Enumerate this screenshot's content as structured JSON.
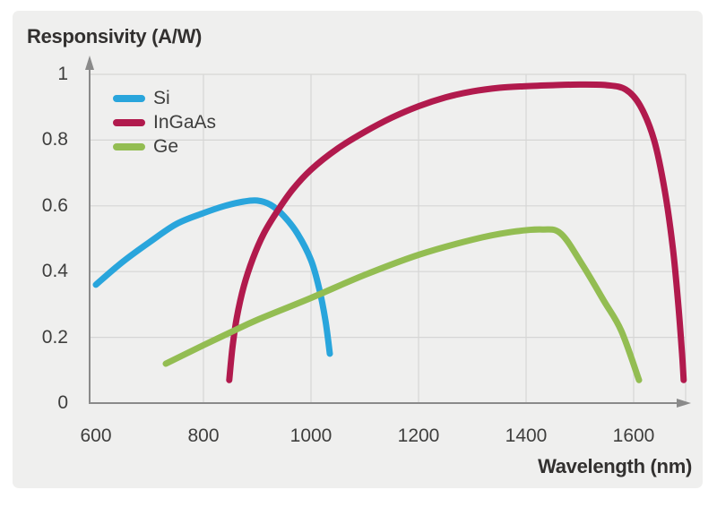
{
  "colors": {
    "page_background": "#ffffff",
    "card_background": "#efefee",
    "grid": "#d6d6d5",
    "axis": "#8a8a8a",
    "title_text": "#32302f",
    "tick_text": "#3e3e3d",
    "si_blue": "#29a5dc",
    "ingaas_crimson": "#b11a4d",
    "ge_green": "#93bd52"
  },
  "chart_data": {
    "type": "line",
    "title": "Responsivity (A/W)",
    "xlabel": "Wavelength (nm)",
    "ylabel": "Responsivity (A/W)",
    "xlim": [
      588,
      1697
    ],
    "ylim": [
      0,
      1
    ],
    "x_ticks": [
      600,
      800,
      1000,
      1200,
      1400,
      1600
    ],
    "x_tick_labels": [
      "600",
      "800",
      "1000",
      "1200",
      "1400",
      "1600"
    ],
    "y_ticks": [
      0,
      0.2,
      0.4,
      0.6,
      0.8,
      1
    ],
    "y_tick_labels": [
      "0",
      "0.2",
      "0.4",
      "0.6",
      "0.8",
      "1"
    ],
    "grid": true,
    "legend_position": "top-left",
    "legend_entries": [
      "Si",
      "InGaAs",
      "Ge"
    ],
    "series": [
      {
        "name": "Si",
        "color": "#29a5dc",
        "points": [
          [
            600,
            0.36
          ],
          [
            650,
            0.43
          ],
          [
            700,
            0.49
          ],
          [
            750,
            0.545
          ],
          [
            800,
            0.578
          ],
          [
            840,
            0.6
          ],
          [
            875,
            0.613
          ],
          [
            900,
            0.616
          ],
          [
            925,
            0.603
          ],
          [
            950,
            0.568
          ],
          [
            975,
            0.515
          ],
          [
            1000,
            0.435
          ],
          [
            1015,
            0.35
          ],
          [
            1027,
            0.25
          ],
          [
            1035,
            0.15
          ]
        ]
      },
      {
        "name": "InGaAs",
        "color": "#b11a4d",
        "points": [
          [
            848,
            0.07
          ],
          [
            854,
            0.17
          ],
          [
            862,
            0.26
          ],
          [
            875,
            0.355
          ],
          [
            892,
            0.44
          ],
          [
            912,
            0.515
          ],
          [
            935,
            0.578
          ],
          [
            965,
            0.648
          ],
          [
            1000,
            0.71
          ],
          [
            1050,
            0.775
          ],
          [
            1100,
            0.825
          ],
          [
            1150,
            0.868
          ],
          [
            1200,
            0.903
          ],
          [
            1250,
            0.93
          ],
          [
            1300,
            0.948
          ],
          [
            1350,
            0.959
          ],
          [
            1400,
            0.964
          ],
          [
            1450,
            0.967
          ],
          [
            1500,
            0.969
          ],
          [
            1550,
            0.967
          ],
          [
            1585,
            0.954
          ],
          [
            1612,
            0.905
          ],
          [
            1638,
            0.8
          ],
          [
            1658,
            0.645
          ],
          [
            1673,
            0.47
          ],
          [
            1683,
            0.3
          ],
          [
            1690,
            0.15
          ],
          [
            1693,
            0.07
          ]
        ]
      },
      {
        "name": "Ge",
        "color": "#93bd52",
        "points": [
          [
            730,
            0.12
          ],
          [
            800,
            0.176
          ],
          [
            850,
            0.215
          ],
          [
            900,
            0.253
          ],
          [
            1000,
            0.32
          ],
          [
            1100,
            0.39
          ],
          [
            1200,
            0.451
          ],
          [
            1300,
            0.497
          ],
          [
            1370,
            0.52
          ],
          [
            1430,
            0.528
          ],
          [
            1465,
            0.515
          ],
          [
            1505,
            0.42
          ],
          [
            1545,
            0.31
          ],
          [
            1577,
            0.22
          ],
          [
            1610,
            0.07
          ]
        ]
      }
    ]
  }
}
